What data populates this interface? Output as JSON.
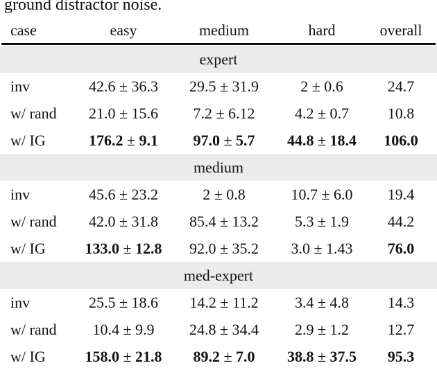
{
  "caption": "ground distractor noise.",
  "columns": [
    "case",
    "easy",
    "medium",
    "hard",
    "overall"
  ],
  "groups": [
    {
      "name": "expert",
      "rows": [
        {
          "case": "inv",
          "cells": [
            {
              "mean": "42.6",
              "std": "36.3",
              "bold": false
            },
            {
              "mean": "29.5",
              "std": "31.9",
              "bold": false
            },
            {
              "mean": "2",
              "std": "0.6",
              "bold": false
            }
          ],
          "overall": "24.7",
          "overall_bold": false
        },
        {
          "case": "w/ rand",
          "cells": [
            {
              "mean": "21.0",
              "std": "15.6",
              "bold": false
            },
            {
              "mean": "7.2",
              "std": "6.12",
              "bold": false
            },
            {
              "mean": "4.2",
              "std": "0.7",
              "bold": false
            }
          ],
          "overall": "10.8",
          "overall_bold": false
        },
        {
          "case": "w/ IG",
          "cells": [
            {
              "mean": "176.2",
              "std": "9.1",
              "bold": true
            },
            {
              "mean": "97.0",
              "std": "5.7",
              "bold": true
            },
            {
              "mean": "44.8",
              "std": "18.4",
              "bold": true
            }
          ],
          "overall": "106.0",
          "overall_bold": true
        }
      ]
    },
    {
      "name": "medium",
      "rows": [
        {
          "case": "inv",
          "cells": [
            {
              "mean": "45.6",
              "std": "23.2",
              "bold": false
            },
            {
              "mean": "2",
              "std": "0.8",
              "bold": false
            },
            {
              "mean": "10.7",
              "std": "6.0",
              "bold": false
            }
          ],
          "overall": "19.4",
          "overall_bold": false
        },
        {
          "case": "w/ rand",
          "cells": [
            {
              "mean": "42.0",
              "std": "31.8",
              "bold": false
            },
            {
              "mean": "85.4",
              "std": "13.2",
              "bold": false
            },
            {
              "mean": "5.3",
              "std": "1.9",
              "bold": false
            }
          ],
          "overall": "44.2",
          "overall_bold": false
        },
        {
          "case": "w/ IG",
          "cells": [
            {
              "mean": "133.0",
              "std": "12.8",
              "bold": true
            },
            {
              "mean": "92.0",
              "std": "35.2",
              "bold": false
            },
            {
              "mean": "3.0",
              "std": "1.43",
              "bold": false
            }
          ],
          "overall": "76.0",
          "overall_bold": true
        }
      ]
    },
    {
      "name": "med-expert",
      "rows": [
        {
          "case": "inv",
          "cells": [
            {
              "mean": "25.5",
              "std": "18.6",
              "bold": false
            },
            {
              "mean": "14.2",
              "std": "11.2",
              "bold": false
            },
            {
              "mean": "3.4",
              "std": "4.8",
              "bold": false
            }
          ],
          "overall": "14.3",
          "overall_bold": false
        },
        {
          "case": "w/ rand",
          "cells": [
            {
              "mean": "10.4",
              "std": "9.9",
              "bold": false
            },
            {
              "mean": "24.8",
              "std": "34.4",
              "bold": false
            },
            {
              "mean": "2.9",
              "std": "1.2",
              "bold": false
            }
          ],
          "overall": "12.7",
          "overall_bold": false
        },
        {
          "case": "w/ IG",
          "cells": [
            {
              "mean": "158.0",
              "std": "21.8",
              "bold": true
            },
            {
              "mean": "89.2",
              "std": "7.0",
              "bold": true
            },
            {
              "mean": "38.8",
              "std": "37.5",
              "bold": true
            }
          ],
          "overall": "95.3",
          "overall_bold": true
        }
      ]
    }
  ]
}
